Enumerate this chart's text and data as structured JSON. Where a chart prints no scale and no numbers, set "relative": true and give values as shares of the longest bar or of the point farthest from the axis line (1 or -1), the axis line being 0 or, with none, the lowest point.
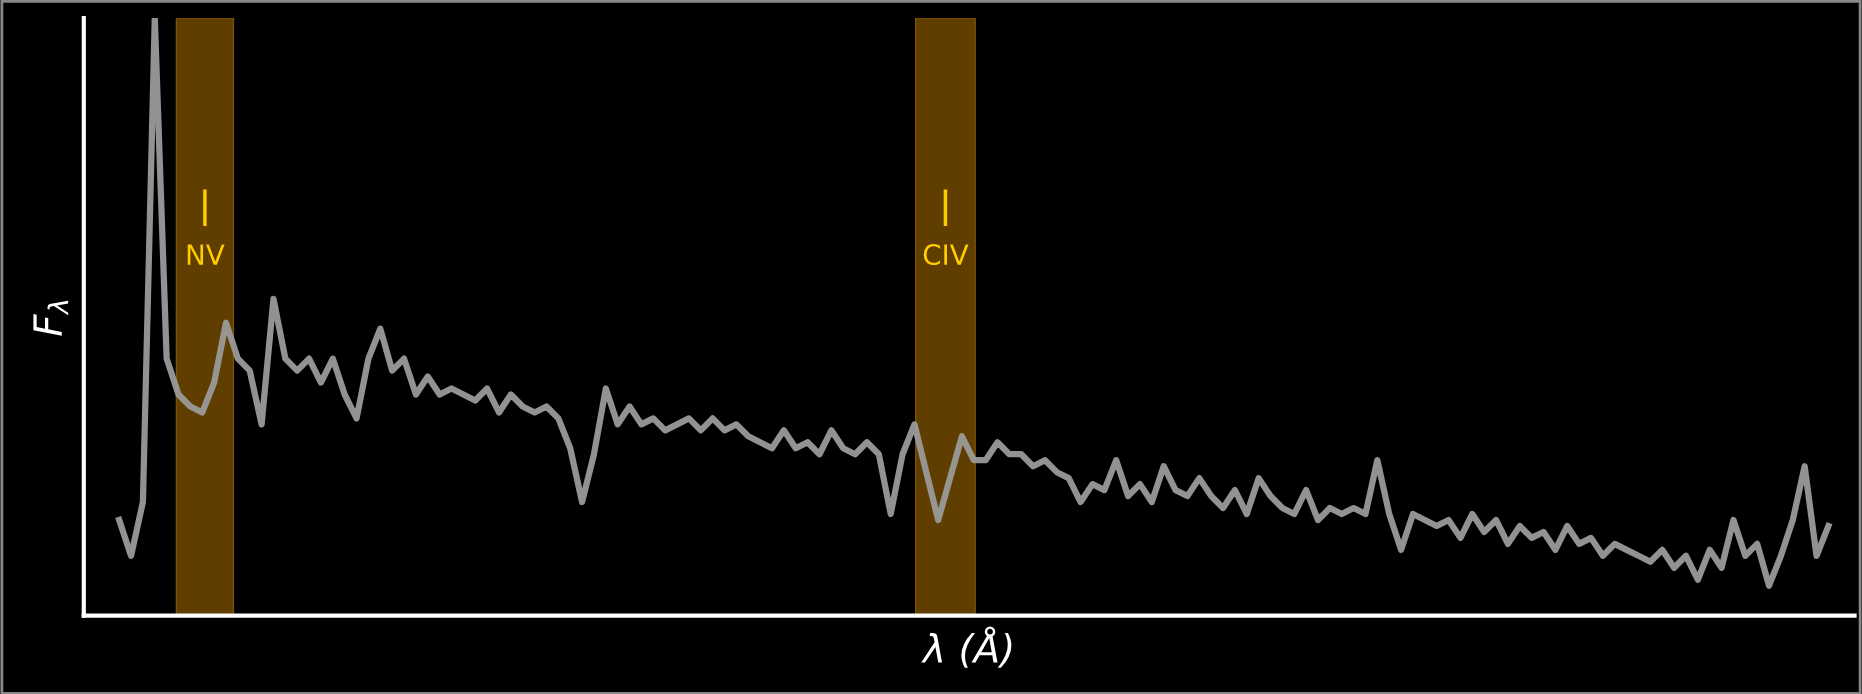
{
  "chart_data": {
    "type": "line",
    "relative": true,
    "xlabel": "λ (Å)",
    "ylabel": "F$_{λ}$",
    "color": "#9a9a9a",
    "legend": false,
    "tick_labels": false,
    "categories": [
      null,
      null,
      null,
      null,
      null,
      null,
      null,
      null,
      null,
      null,
      null,
      null,
      null,
      null,
      null,
      null,
      null,
      null,
      null,
      null,
      null,
      null,
      null,
      null,
      null,
      null,
      null,
      null,
      null,
      null,
      null,
      null,
      null,
      null,
      null,
      null,
      null,
      null,
      null,
      null,
      null,
      null,
      null,
      null,
      null,
      null,
      null,
      null,
      null,
      null,
      null,
      null,
      null,
      null,
      null,
      null,
      null,
      null,
      null,
      null,
      null,
      null,
      null,
      null,
      null,
      null,
      null,
      null,
      null,
      null,
      null,
      null,
      null,
      null,
      null,
      null,
      null,
      null,
      null,
      null,
      null,
      null,
      null,
      null,
      null,
      null,
      null,
      null,
      null,
      null,
      null,
      null,
      null,
      null,
      null,
      null,
      null,
      null,
      null,
      null,
      null,
      null,
      null,
      null,
      null,
      null,
      null,
      null,
      null,
      null,
      null,
      null,
      null,
      null,
      null,
      null,
      null,
      null,
      null,
      null,
      null,
      null,
      null,
      null,
      null,
      null,
      null,
      null,
      null,
      null,
      null,
      null,
      null,
      null,
      null,
      null,
      null,
      null,
      null,
      null,
      null,
      null,
      null,
      null,
      null
    ],
    "values": [
      0.16,
      0.1,
      0.19,
      1.0,
      0.43,
      0.37,
      0.35,
      0.34,
      0.39,
      0.49,
      0.43,
      0.41,
      0.32,
      0.53,
      0.43,
      0.41,
      0.43,
      0.39,
      0.43,
      0.37,
      0.33,
      0.43,
      0.48,
      0.41,
      0.43,
      0.37,
      0.4,
      0.37,
      0.38,
      0.37,
      0.36,
      0.38,
      0.34,
      0.37,
      0.35,
      0.34,
      0.35,
      0.33,
      0.28,
      0.19,
      0.27,
      0.38,
      0.32,
      0.35,
      0.32,
      0.33,
      0.31,
      0.32,
      0.33,
      0.31,
      0.33,
      0.31,
      0.32,
      0.3,
      0.29,
      0.28,
      0.31,
      0.28,
      0.29,
      0.27,
      0.31,
      0.28,
      0.27,
      0.29,
      0.27,
      0.17,
      0.27,
      0.32,
      0.24,
      0.16,
      0.23,
      0.3,
      0.26,
      0.26,
      0.29,
      0.27,
      0.27,
      0.25,
      0.26,
      0.24,
      0.23,
      0.19,
      0.22,
      0.21,
      0.26,
      0.2,
      0.22,
      0.19,
      0.25,
      0.21,
      0.2,
      0.23,
      0.2,
      0.18,
      0.21,
      0.17,
      0.23,
      0.2,
      0.18,
      0.17,
      0.21,
      0.16,
      0.18,
      0.17,
      0.18,
      0.17,
      0.26,
      0.17,
      0.11,
      0.17,
      0.16,
      0.15,
      0.16,
      0.13,
      0.17,
      0.14,
      0.16,
      0.12,
      0.15,
      0.13,
      0.14,
      0.11,
      0.15,
      0.12,
      0.13,
      0.1,
      0.12,
      0.11,
      0.1,
      0.09,
      0.11,
      0.08,
      0.1,
      0.06,
      0.11,
      0.08,
      0.16,
      0.1,
      0.12,
      0.05,
      0.1,
      0.16,
      0.25,
      0.1,
      0.15
    ],
    "annotations": [
      "NV",
      "CIV"
    ]
  }
}
